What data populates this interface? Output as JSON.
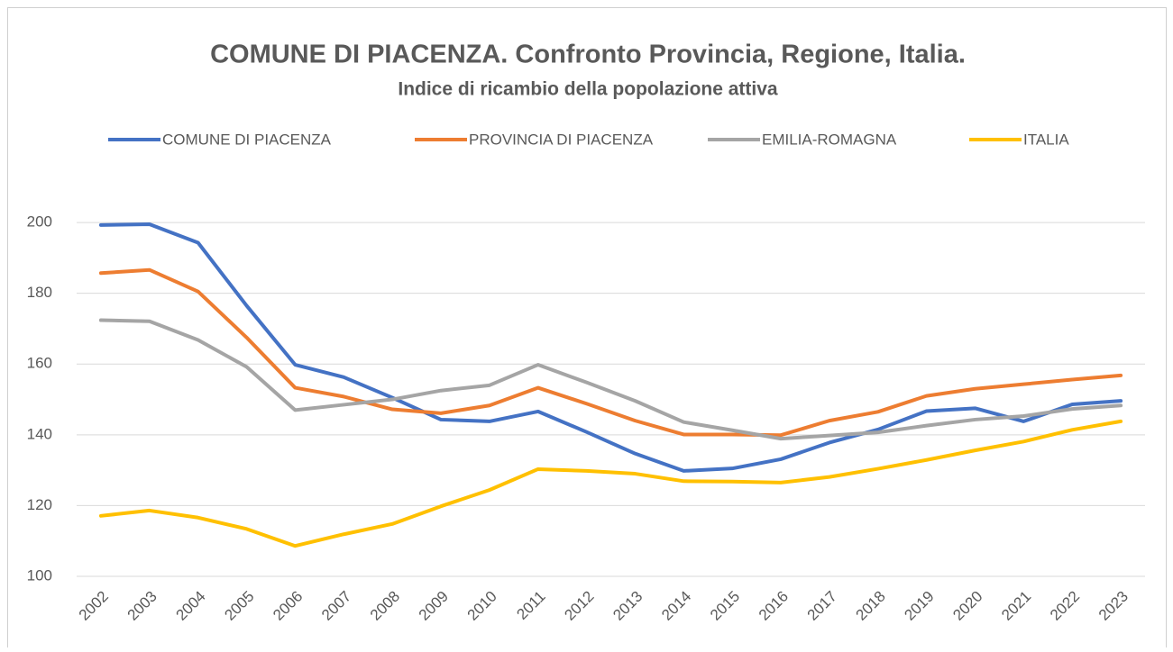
{
  "chart_data": {
    "type": "line",
    "title": "COMUNE DI PIACENZA. Confronto Provincia, Regione, Italia.",
    "subtitle": "Indice di ricambio della popolazione attiva",
    "categories": [
      "2002",
      "2003",
      "2004",
      "2005",
      "2006",
      "2007",
      "2008",
      "2009",
      "2010",
      "2011",
      "2012",
      "2013",
      "2014",
      "2015",
      "2016",
      "2017",
      "2018",
      "2019",
      "2020",
      "2021",
      "2022",
      "2023"
    ],
    "series": [
      {
        "name": "COMUNE DI PIACENZA",
        "color": "#4472c4",
        "values": [
          199.3,
          199.5,
          194.3,
          176.5,
          159.8,
          156.3,
          150.5,
          144.3,
          143.8,
          146.6,
          140.8,
          134.7,
          129.8,
          130.5,
          133.1,
          137.8,
          141.5,
          146.7,
          147.5,
          143.8,
          148.6,
          149.6
        ]
      },
      {
        "name": "PROVINCIA DI PIACENZA",
        "color": "#ed7d31",
        "values": [
          185.7,
          186.6,
          180.5,
          167.5,
          153.3,
          150.8,
          147.2,
          146.1,
          148.3,
          153.3,
          148.8,
          144.0,
          140.1,
          140.1,
          139.9,
          144.0,
          146.5,
          151.0,
          153.0,
          154.3,
          155.6,
          156.8
        ]
      },
      {
        "name": "EMILIA-ROMAGNA",
        "color": "#a5a5a5",
        "values": [
          172.4,
          172.1,
          166.8,
          159.2,
          147.0,
          148.5,
          150.0,
          152.5,
          154.0,
          159.8,
          154.8,
          149.6,
          143.6,
          141.3,
          138.9,
          139.8,
          140.7,
          142.6,
          144.3,
          145.3,
          147.3,
          148.3
        ]
      },
      {
        "name": "ITALIA",
        "color": "#ffc000",
        "values": [
          117.1,
          118.6,
          116.6,
          113.4,
          108.6,
          111.9,
          114.8,
          119.8,
          124.4,
          130.3,
          129.8,
          129.0,
          126.9,
          126.8,
          126.5,
          128.1,
          130.4,
          132.9,
          135.6,
          138.1,
          141.4,
          143.8
        ]
      }
    ],
    "ylim": [
      100,
      220
    ],
    "yticks": [
      100,
      120,
      140,
      160,
      180,
      200
    ],
    "grid": true,
    "legend": "top"
  }
}
